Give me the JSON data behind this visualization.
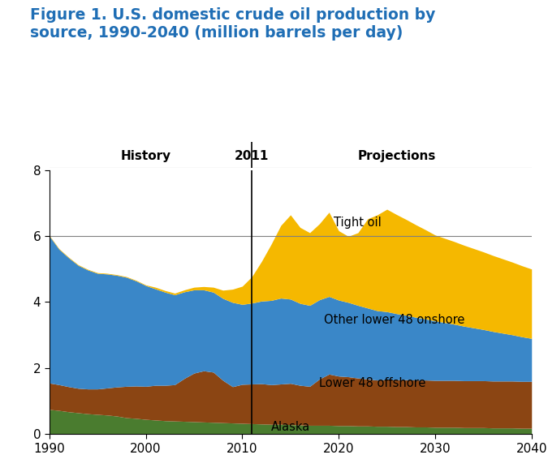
{
  "title": "Figure 1. U.S. domestic crude oil production by\nsource, 1990-2040 (million barrels per day)",
  "title_color": "#1F6EB5",
  "title_fontsize": 13.5,
  "years": [
    1990,
    1991,
    1992,
    1993,
    1994,
    1995,
    1996,
    1997,
    1998,
    1999,
    2000,
    2001,
    2002,
    2003,
    2004,
    2005,
    2006,
    2007,
    2008,
    2009,
    2010,
    2011,
    2012,
    2013,
    2014,
    2015,
    2016,
    2017,
    2018,
    2019,
    2020,
    2021,
    2022,
    2023,
    2024,
    2025,
    2026,
    2027,
    2028,
    2029,
    2030,
    2031,
    2032,
    2033,
    2034,
    2035,
    2036,
    2037,
    2038,
    2039,
    2040
  ],
  "alaska": [
    0.75,
    0.72,
    0.68,
    0.65,
    0.62,
    0.6,
    0.58,
    0.55,
    0.5,
    0.48,
    0.45,
    0.43,
    0.41,
    0.4,
    0.39,
    0.38,
    0.37,
    0.36,
    0.35,
    0.34,
    0.33,
    0.32,
    0.31,
    0.3,
    0.3,
    0.29,
    0.28,
    0.27,
    0.27,
    0.27,
    0.26,
    0.26,
    0.25,
    0.25,
    0.24,
    0.24,
    0.23,
    0.23,
    0.22,
    0.22,
    0.21,
    0.21,
    0.21,
    0.2,
    0.2,
    0.2,
    0.19,
    0.19,
    0.19,
    0.18,
    0.18
  ],
  "lower48_offshore": [
    0.8,
    0.78,
    0.76,
    0.74,
    0.75,
    0.77,
    0.82,
    0.88,
    0.95,
    0.98,
    1.0,
    1.05,
    1.07,
    1.1,
    1.3,
    1.47,
    1.55,
    1.52,
    1.28,
    1.1,
    1.18,
    1.2,
    1.22,
    1.2,
    1.22,
    1.25,
    1.2,
    1.18,
    1.4,
    1.55,
    1.5,
    1.48,
    1.45,
    1.42,
    1.4,
    1.42,
    1.42,
    1.42,
    1.42,
    1.42,
    1.42,
    1.42,
    1.42,
    1.42,
    1.42,
    1.42,
    1.42,
    1.42,
    1.42,
    1.42,
    1.42
  ],
  "other_lower48_onshore": [
    4.45,
    4.1,
    3.9,
    3.72,
    3.6,
    3.5,
    3.45,
    3.38,
    3.3,
    3.18,
    3.05,
    2.92,
    2.82,
    2.72,
    2.62,
    2.52,
    2.45,
    2.42,
    2.48,
    2.55,
    2.42,
    2.45,
    2.5,
    2.55,
    2.6,
    2.55,
    2.48,
    2.45,
    2.4,
    2.35,
    2.3,
    2.25,
    2.2,
    2.15,
    2.1,
    2.05,
    2.0,
    1.95,
    1.9,
    1.85,
    1.8,
    1.75,
    1.7,
    1.65,
    1.6,
    1.55,
    1.5,
    1.45,
    1.4,
    1.35,
    1.3
  ],
  "tight_oil": [
    0.02,
    0.02,
    0.02,
    0.02,
    0.02,
    0.02,
    0.02,
    0.02,
    0.02,
    0.02,
    0.02,
    0.05,
    0.05,
    0.05,
    0.06,
    0.08,
    0.1,
    0.15,
    0.25,
    0.4,
    0.55,
    0.8,
    1.2,
    1.7,
    2.2,
    2.55,
    2.3,
    2.2,
    2.3,
    2.55,
    2.1,
    2.0,
    2.2,
    2.7,
    2.9,
    3.1,
    3.0,
    2.9,
    2.8,
    2.7,
    2.6,
    2.55,
    2.5,
    2.45,
    2.4,
    2.35,
    2.3,
    2.25,
    2.2,
    2.15,
    2.1
  ],
  "colors": {
    "alaska": "#4a7c2f",
    "lower48_offshore": "#8B4513",
    "other_lower48_onshore": "#3A87C8",
    "tight_oil": "#F5B800"
  },
  "labels": {
    "alaska": "Alaska",
    "lower48_offshore": "Lower 48 offshore",
    "other_lower48_onshore": "Other lower 48 onshore",
    "tight_oil": "Tight oil"
  },
  "ylim": [
    0,
    8
  ],
  "xlim": [
    1990,
    2040
  ],
  "yticks": [
    0,
    2,
    4,
    6,
    8
  ],
  "xticks": [
    1990,
    2000,
    2010,
    2020,
    2030,
    2040
  ],
  "vline_x": 2011,
  "history_label": "History",
  "projections_label": "Projections",
  "year_label": "2011",
  "hline_y": 6,
  "background_color": "#ffffff"
}
